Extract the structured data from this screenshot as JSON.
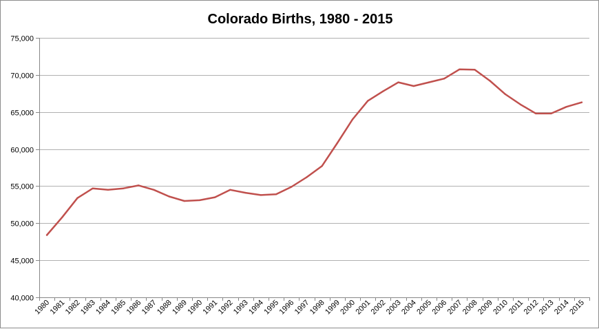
{
  "chart_data": {
    "type": "line",
    "title": "Colorado Births, 1980 - 2015",
    "xlabel": "",
    "ylabel": "",
    "x": [
      "1980",
      "1981",
      "1982",
      "1983",
      "1984",
      "1985",
      "1986",
      "1987",
      "1988",
      "1989",
      "1990",
      "1991",
      "1992",
      "1993",
      "1994",
      "1995",
      "1996",
      "1997",
      "1998",
      "1999",
      "2000",
      "2001",
      "2002",
      "2003",
      "2004",
      "2005",
      "2006",
      "2007",
      "2008",
      "2009",
      "2010",
      "2011",
      "2012",
      "2013",
      "2014",
      "2015"
    ],
    "series": [
      {
        "name": "",
        "color": "#c0504d",
        "values": [
          48400,
          50800,
          53400,
          54700,
          54500,
          54700,
          55100,
          54500,
          53600,
          53000,
          53100,
          53500,
          54500,
          54100,
          53800,
          53900,
          54900,
          56200,
          57700,
          60800,
          64000,
          66500,
          67800,
          69000,
          68500,
          69000,
          69500,
          70750,
          70700,
          69200,
          67400,
          66000,
          64800,
          64800,
          65700,
          66300
        ]
      }
    ],
    "ylim": [
      40000,
      75000
    ],
    "ytick_values": [
      40000,
      45000,
      50000,
      55000,
      60000,
      65000,
      70000,
      75000
    ],
    "ytick_labels": [
      "40,000",
      "45,000",
      "50,000",
      "55,000",
      "60,000",
      "65,000",
      "70,000",
      "75,000"
    ],
    "grid": "horizontal",
    "legend": "none"
  }
}
